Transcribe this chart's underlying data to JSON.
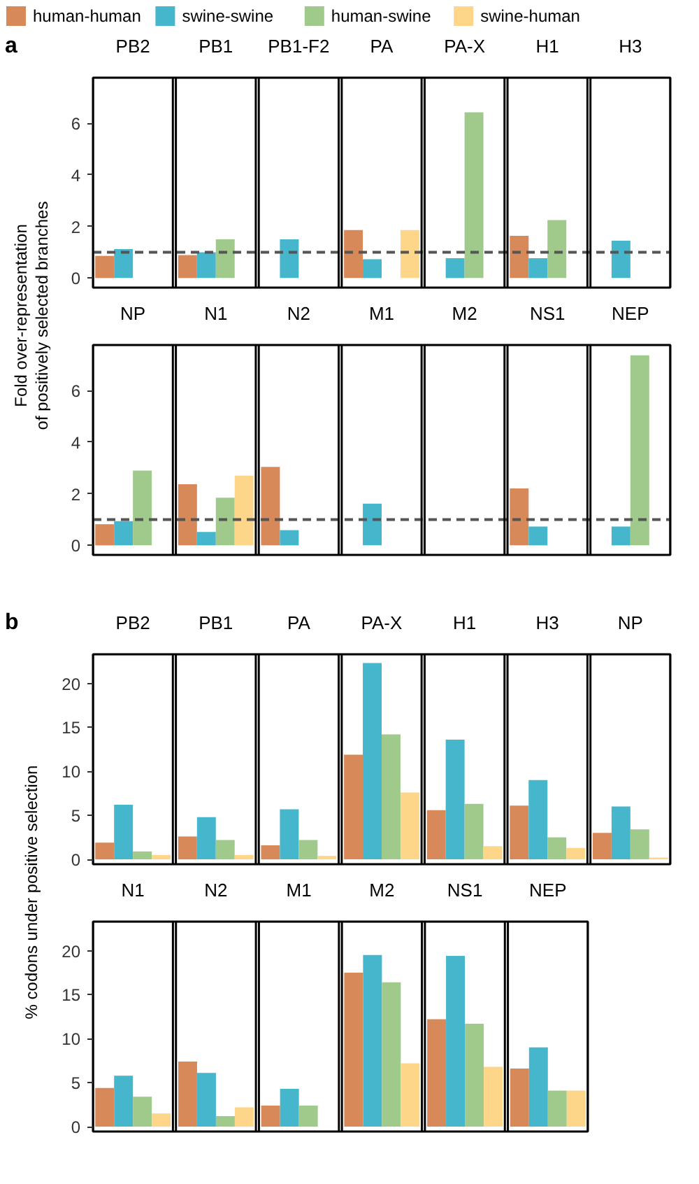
{
  "chart_data": [
    {
      "type": "bar",
      "ylabel": "Fold over-representation\nof positively selected branches",
      "annotations": [
        "a"
      ],
      "legend": "top",
      "categories": [
        "PB2",
        "PB1",
        "PB1-F2",
        "PA",
        "PA-X",
        "H1",
        "H3"
      ],
      "ylim": [
        -0.37,
        7.77
      ],
      "yticks": [
        0,
        2,
        4,
        6
      ],
      "ref_lines": [
        {
          "axis": "y",
          "value": 1,
          "color": "#555555",
          "line_style": "dashed"
        }
      ],
      "series": [
        {
          "name": "human-human",
          "color": "#d8895a",
          "values": [
            0.86,
            0.89,
            null,
            1.86,
            null,
            1.64,
            null
          ]
        },
        {
          "name": "swine-swine",
          "color": "#46b6cc",
          "values": [
            1.12,
            1.0,
            1.5,
            0.73,
            0.77,
            0.77,
            1.45
          ]
        },
        {
          "name": "human-swine",
          "color": "#a0c98c",
          "values": [
            null,
            1.5,
            null,
            null,
            6.43,
            2.25,
            null
          ]
        },
        {
          "name": "swine-human",
          "color": "#fdd68a",
          "values": [
            null,
            null,
            null,
            1.86,
            null,
            null,
            null
          ]
        }
      ]
    },
    {
      "type": "bar",
      "categories": [
        "NP",
        "N1",
        "N2",
        "M1",
        "M2",
        "NS1",
        "NEP"
      ],
      "ylim": [
        -0.37,
        7.77
      ],
      "yticks": [
        0,
        2,
        4,
        6
      ],
      "ref_lines": [
        {
          "axis": "y",
          "value": 1,
          "color": "#555555",
          "line_style": "dashed"
        }
      ],
      "series": [
        {
          "color": "#d8895a",
          "values": [
            0.82,
            2.37,
            3.04,
            null,
            null,
            2.21,
            null
          ]
        },
        {
          "color": "#46b6cc",
          "values": [
            0.94,
            0.52,
            0.59,
            1.62,
            null,
            0.73,
            0.73
          ]
        },
        {
          "color": "#a0c98c",
          "values": [
            2.9,
            1.85,
            null,
            null,
            null,
            null,
            7.37
          ]
        },
        {
          "color": "#fdd68a",
          "values": [
            null,
            2.7,
            null,
            null,
            null,
            null,
            null
          ]
        }
      ]
    },
    {
      "type": "bar",
      "ylabel": "% codons under positive selection",
      "annotations": [
        "b"
      ],
      "categories": [
        "PB2",
        "PB1",
        "PA",
        "PA-X",
        "H1",
        "H3",
        "NP"
      ],
      "ylim": [
        -0.55,
        23.3
      ],
      "yticks": [
        0,
        5,
        10,
        15,
        20
      ],
      "series": [
        {
          "color": "#d8895a",
          "values": [
            1.9,
            2.6,
            1.6,
            11.9,
            5.6,
            6.1,
            3.0
          ]
        },
        {
          "color": "#46b6cc",
          "values": [
            6.2,
            4.8,
            5.7,
            22.3,
            13.6,
            9.0,
            6.0
          ]
        },
        {
          "color": "#a0c98c",
          "values": [
            0.9,
            2.2,
            2.2,
            14.2,
            6.3,
            2.5,
            3.4
          ]
        },
        {
          "color": "#fdd68a",
          "values": [
            0.5,
            0.5,
            0.4,
            7.6,
            1.5,
            1.3,
            0.2
          ]
        }
      ]
    },
    {
      "type": "bar",
      "categories": [
        "N1",
        "N2",
        "M1",
        "M2",
        "NS1",
        "NEP"
      ],
      "ylim": [
        -0.55,
        23.3
      ],
      "yticks": [
        0,
        5,
        10,
        15,
        20
      ],
      "series": [
        {
          "color": "#d8895a",
          "values": [
            4.4,
            7.4,
            2.4,
            17.5,
            12.2,
            6.6
          ]
        },
        {
          "color": "#46b6cc",
          "values": [
            5.8,
            6.1,
            4.3,
            19.5,
            19.4,
            9.0
          ]
        },
        {
          "color": "#a0c98c",
          "values": [
            3.4,
            1.2,
            2.4,
            16.4,
            11.7,
            4.1
          ]
        },
        {
          "color": "#fdd68a",
          "values": [
            1.5,
            2.2,
            null,
            7.2,
            6.8,
            4.1
          ]
        }
      ]
    }
  ]
}
